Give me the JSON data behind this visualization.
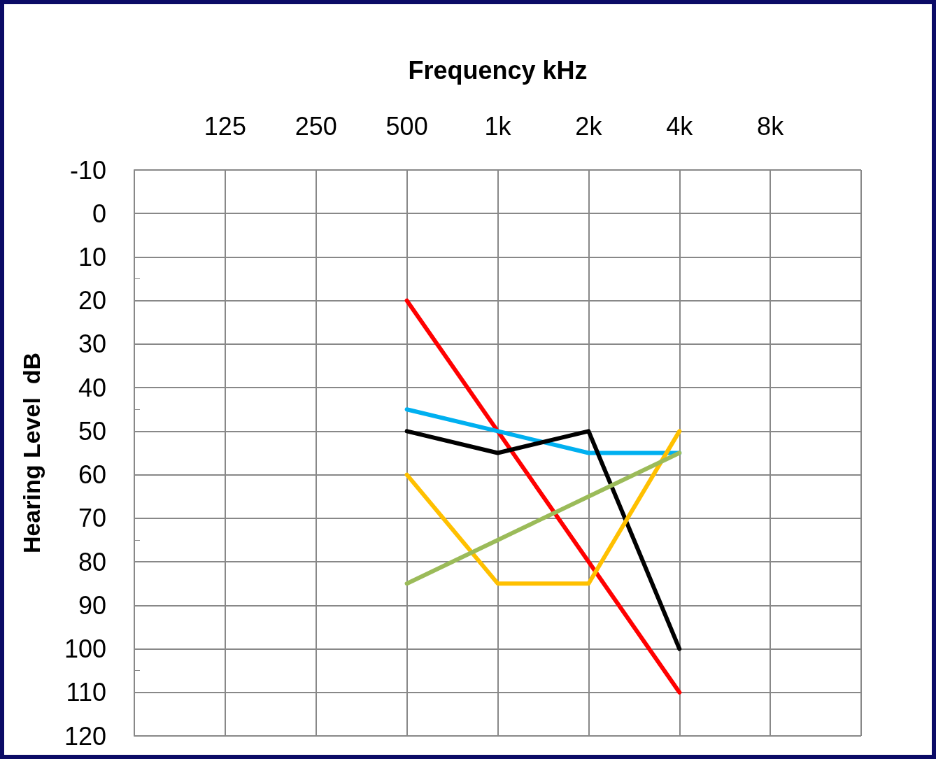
{
  "chart_data": {
    "type": "line",
    "xlabel": "Frequency kHz",
    "ylabel": "Hearing Level  dB",
    "categories": [
      "125",
      "250",
      "500",
      "1k",
      "2k",
      "4k",
      "8k"
    ],
    "series": [
      {
        "color": "#ff0000",
        "values": [
          null,
          null,
          20,
          50,
          80,
          110,
          null
        ]
      },
      {
        "color": "#00b0f0",
        "values": [
          null,
          null,
          45,
          50,
          55,
          55,
          null
        ]
      },
      {
        "color": "#000000",
        "values": [
          null,
          null,
          50,
          55,
          50,
          100,
          null
        ]
      },
      {
        "color": "#ffc000",
        "values": [
          null,
          null,
          60,
          85,
          85,
          50,
          null
        ]
      },
      {
        "color": "#9bbb59",
        "values": [
          null,
          null,
          85,
          75,
          65,
          55,
          null
        ]
      }
    ],
    "ylim": [
      120,
      -10
    ],
    "yticks": [
      -10,
      0,
      10,
      20,
      30,
      40,
      50,
      60,
      70,
      80,
      90,
      100,
      110,
      120
    ],
    "grid": true
  }
}
